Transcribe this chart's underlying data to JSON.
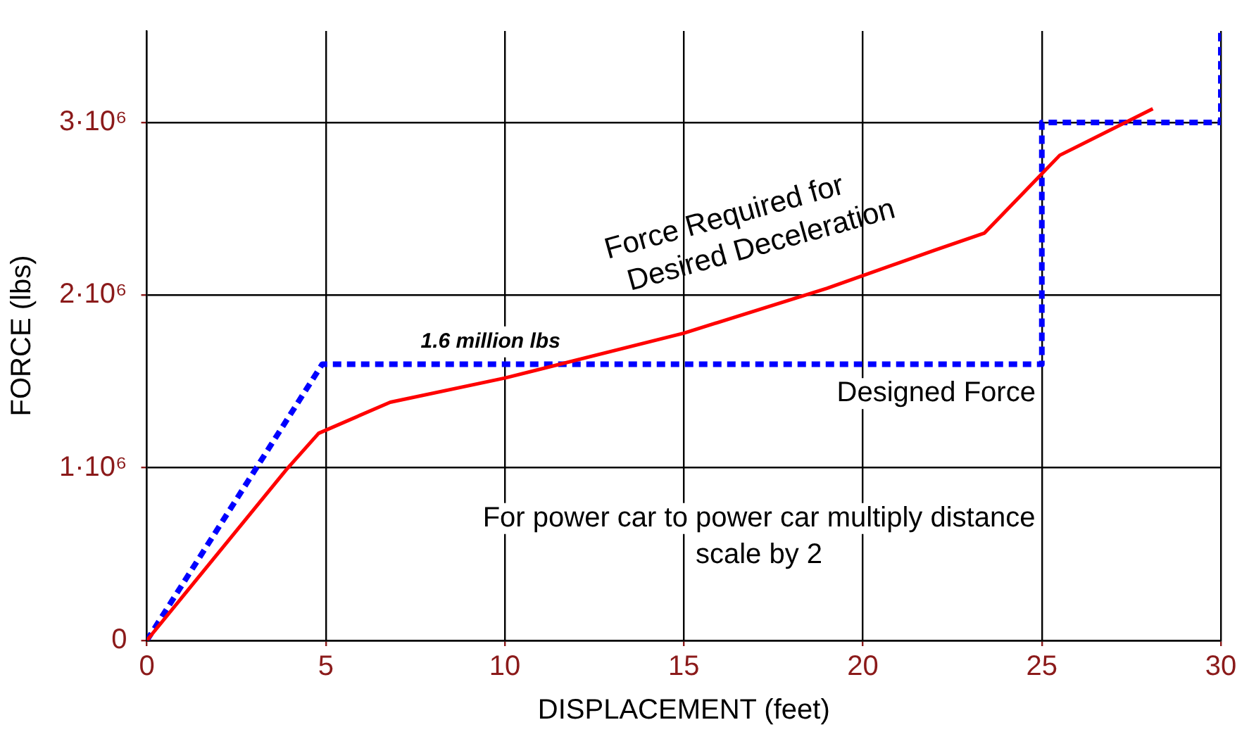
{
  "chart_data": {
    "type": "line",
    "xlabel": "DISPLACEMENT (feet)",
    "ylabel": "FORCE (lbs)",
    "xlim": [
      0,
      30
    ],
    "xticks": [
      0,
      5,
      10,
      15,
      20,
      25,
      30
    ],
    "ylim": [
      0,
      3530000
    ],
    "yticks": [
      0,
      {
        "value": 1000000,
        "label": "1·10⁶"
      },
      {
        "value": 2000000,
        "label": "2·10⁶"
      },
      {
        "value": 3000000,
        "label": "3·10⁶"
      }
    ],
    "grid": true,
    "legend": false,
    "marker": "none",
    "series": [
      {
        "color": "#ff0000",
        "line_style": "solid",
        "x": [
          0,
          3.9,
          4.8,
          6.8,
          10,
          15,
          19,
          22,
          23.4,
          25.5,
          28.1
        ],
        "values": [
          0,
          990000,
          1200000,
          1380000,
          1520000,
          1780000,
          2040000,
          2260000,
          2360000,
          2810000,
          3080000
        ]
      },
      {
        "color": "#0000ff",
        "line_style": "dashed",
        "x": [
          0,
          4.9,
          25,
          25,
          30,
          30
        ],
        "values": [
          0,
          1600000,
          1600000,
          3000000,
          3000000,
          3530000
        ]
      }
    ],
    "annotations": [
      "1.6 million lbs",
      "Force Required for Desired Deceleration",
      "Designed Force",
      "For power car to power car multiply distance scale by 2"
    ]
  }
}
